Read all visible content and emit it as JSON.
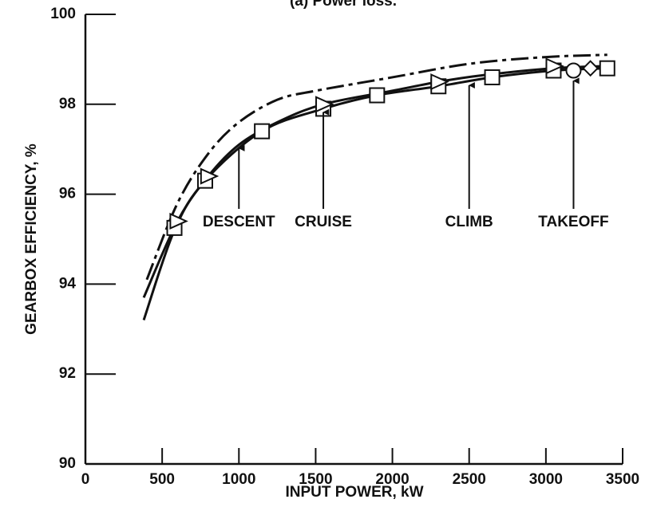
{
  "chart_data": {
    "type": "line",
    "title": "(a) Power loss.",
    "xlabel": "INPUT POWER, kW",
    "ylabel": "GEARBOX EFFICIENCY, %",
    "xlim": [
      0,
      3500
    ],
    "xticks": [
      0,
      500,
      1000,
      1500,
      2000,
      2500,
      3000,
      3500
    ],
    "ylim": [
      90,
      100
    ],
    "yticks": [
      90,
      92,
      94,
      96,
      98,
      100
    ],
    "grid": false,
    "series": [
      {
        "style": "dashdot",
        "color": "#111",
        "x": [
          400,
          600,
          800,
          1000,
          1250,
          1500,
          2000,
          2500,
          3000,
          3400
        ],
        "values": [
          94.1,
          95.8,
          96.9,
          97.6,
          98.1,
          98.3,
          98.6,
          98.9,
          99.05,
          99.1
        ]
      },
      {
        "style": "solid",
        "color": "#111",
        "x": [
          380,
          600,
          800,
          1000,
          1250,
          1550,
          2000,
          2300,
          2600,
          3050,
          3400
        ],
        "values": [
          93.7,
          95.4,
          96.4,
          97.1,
          97.6,
          98.0,
          98.3,
          98.5,
          98.65,
          98.8,
          98.85
        ]
      },
      {
        "style": "solid",
        "color": "#111",
        "x": [
          380,
          580,
          780,
          1150,
          1550,
          1900,
          2300,
          2650,
          3050,
          3400
        ],
        "values": [
          93.2,
          95.2,
          96.3,
          97.4,
          97.9,
          98.2,
          98.4,
          98.6,
          98.75,
          98.8
        ]
      },
      {
        "style": "markers",
        "marker": "square",
        "color": "#111",
        "x": [
          580,
          780,
          1150,
          1550,
          1900,
          2300,
          2650,
          3050,
          3400
        ],
        "values": [
          95.25,
          96.3,
          97.4,
          97.9,
          98.2,
          98.4,
          98.6,
          98.75,
          98.8
        ]
      },
      {
        "style": "markers",
        "marker": "triangle",
        "color": "#111",
        "x": [
          600,
          800,
          1550,
          2300,
          3050
        ],
        "values": [
          95.4,
          96.4,
          98.0,
          98.5,
          98.85
        ]
      },
      {
        "style": "markers",
        "marker": "circle",
        "color": "#111",
        "x": [
          3180
        ],
        "values": [
          98.75
        ]
      },
      {
        "style": "markers",
        "marker": "diamond",
        "color": "#111",
        "x": [
          3290
        ],
        "values": [
          98.8
        ]
      }
    ],
    "annotations": [
      {
        "text": "DESCENT",
        "x": 1000,
        "y": 97.2
      },
      {
        "text": "CRUISE",
        "x": 1550,
        "y": 98.0
      },
      {
        "text": "CLIMB",
        "x": 2500,
        "y": 98.6
      },
      {
        "text": "TAKEOFF",
        "x": 3180,
        "y": 98.7
      }
    ]
  }
}
